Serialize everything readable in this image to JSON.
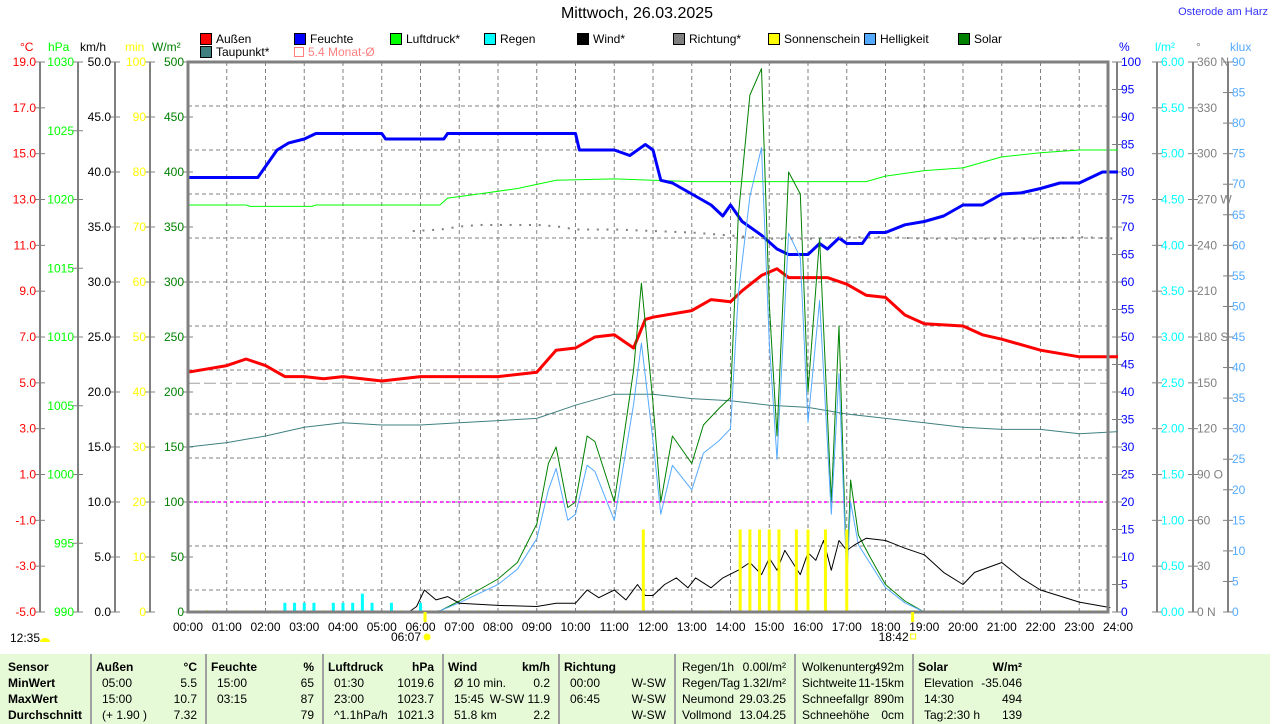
{
  "title": "Mittwoch, 26.03.2025",
  "station": "Osterode am Harz",
  "legend": [
    {
      "label": "Außen",
      "color": "#ff0000"
    },
    {
      "label": "Feuchte",
      "color": "#0000ff"
    },
    {
      "label": "Luftdruck*",
      "color": "#00ff00"
    },
    {
      "label": "Regen",
      "color": "#00ffff"
    },
    {
      "label": "Wind*",
      "color": "#000000"
    },
    {
      "label": "Richtung*",
      "color": "#808080"
    },
    {
      "label": "Sonnenschein",
      "color": "#ffff00"
    },
    {
      "label": "Helligkeit",
      "color": "#55aaff"
    },
    {
      "label": "Solar",
      "color": "#008000"
    },
    {
      "label": "Taupunkt*",
      "color": "#408080"
    },
    {
      "label": "5.4 Monat-Ø",
      "color": "#ff8080"
    }
  ],
  "markers": {
    "sunrise": "06:07",
    "sunset": "18:42",
    "noon": "12:35"
  },
  "chart_data": {
    "type": "line",
    "title": "Mittwoch, 26.03.2025",
    "x_range_hours": [
      0,
      24
    ],
    "x_ticks": [
      "00:00",
      "01:00",
      "02:00",
      "03:00",
      "04:00",
      "05:00",
      "06:00",
      "07:00",
      "08:00",
      "09:00",
      "10:00",
      "11:00",
      "12:00",
      "13:00",
      "14:00",
      "15:00",
      "16:00",
      "17:00",
      "18:00",
      "19:00",
      "20:00",
      "21:00",
      "22:00",
      "23:00",
      "24:00"
    ],
    "grid": true,
    "axes": {
      "temp": {
        "unit": "°C",
        "min": -5,
        "max": 20,
        "ticks": [
          "19.0",
          "17.0",
          "15.0",
          "13.0",
          "11.0",
          "9.0",
          "7.0",
          "5.0",
          "3.0",
          "1.0",
          "-1.0",
          "-3.0",
          "-5.0"
        ],
        "color": "#ff0000"
      },
      "hpa": {
        "unit": "hPa",
        "min": 990,
        "max": 1030,
        "ticks": [
          "1030",
          "1025",
          "1020",
          "1015",
          "1010",
          "1005",
          "1000",
          "995",
          "990"
        ],
        "color": "#00ff00"
      },
      "kmh": {
        "unit": "km/h",
        "min": 0,
        "max": 50,
        "ticks": [
          "50.0",
          "45.0",
          "40.0",
          "35.0",
          "30.0",
          "25.0",
          "20.0",
          "15.0",
          "10.0",
          "5.0",
          "0.0"
        ],
        "color": "#000000"
      },
      "min": {
        "unit": "min",
        "min": 0,
        "max": 100,
        "ticks": [
          "100",
          "90",
          "80",
          "70",
          "60",
          "50",
          "40",
          "30",
          "20",
          "10",
          "0"
        ],
        "color": "#ffff00"
      },
      "wm2": {
        "unit": "W/m²",
        "min": 0,
        "max": 500,
        "ticks": [
          "500",
          "450",
          "400",
          "350",
          "300",
          "250",
          "200",
          "150",
          "100",
          "50",
          "0"
        ],
        "color": "#008000"
      },
      "pct": {
        "unit": "%",
        "min": 0,
        "max": 100,
        "ticks": [
          "100",
          "95",
          "90",
          "85",
          "80",
          "75",
          "70",
          "65",
          "60",
          "55",
          "50",
          "45",
          "40",
          "35",
          "30",
          "25",
          "20",
          "15",
          "10",
          "5",
          "0"
        ],
        "color": "#0000ff"
      },
      "lm2": {
        "unit": "l/m²",
        "min": 0,
        "max": 6,
        "ticks": [
          "6.00",
          "5.50",
          "5.00",
          "4.50",
          "4.00",
          "3.50",
          "3.00",
          "2.50",
          "2.00",
          "1.50",
          "1.00",
          "0.50",
          "0.00"
        ],
        "color": "#00ffff"
      },
      "deg": {
        "unit": "°",
        "min": 0,
        "max": 360,
        "ticks": [
          "360 N",
          "330",
          "300",
          "270 W",
          "240",
          "210",
          "180 S",
          "150",
          "120",
          "90 O",
          "60",
          "30",
          "0 N"
        ],
        "color": "#808080"
      },
      "klux": {
        "unit": "klux",
        "min": 0,
        "max": 90,
        "ticks": [
          "90",
          "85",
          "80",
          "75",
          "70",
          "65",
          "60",
          "55",
          "50",
          "45",
          "40",
          "35",
          "30",
          "25",
          "20",
          "15",
          "10",
          "5",
          "0"
        ],
        "color": "#55aaff"
      }
    },
    "reference_lines": [
      {
        "name": "5.4 Monat-Ø",
        "axis": "temp",
        "value": 5.4,
        "color": "#a0a0a0"
      },
      {
        "name": "wind-limit",
        "axis": "kmh",
        "value": 10,
        "color": "#ff00ff"
      }
    ],
    "series": [
      {
        "name": "Luftdruck*",
        "axis": "hpa",
        "color": "#00ff00",
        "width": 1,
        "x": [
          0,
          1.5,
          1.6,
          3.2,
          3.3,
          6.5,
          6.7,
          7.5,
          8.5,
          9,
          9.5,
          11,
          12,
          13,
          17.5,
          18,
          19,
          20,
          20.5,
          21,
          22,
          23,
          24
        ],
        "y": [
          1019.6,
          1019.6,
          1019.5,
          1019.5,
          1019.6,
          1019.6,
          1020.1,
          1020.4,
          1020.8,
          1021.1,
          1021.4,
          1021.5,
          1021.4,
          1021.3,
          1021.3,
          1021.7,
          1022.1,
          1022.3,
          1022.7,
          1023.1,
          1023.4,
          1023.6,
          1023.6
        ]
      },
      {
        "name": "Taupunkt*",
        "axis": "temp",
        "color": "#408080",
        "width": 1,
        "x": [
          0,
          1,
          2,
          3,
          4,
          5,
          6,
          7,
          8,
          9,
          10,
          11,
          12,
          13,
          14,
          15,
          16,
          17,
          18,
          19,
          20,
          21,
          22,
          23,
          24
        ],
        "y": [
          2.5,
          2.7,
          3.0,
          3.4,
          3.6,
          3.5,
          3.5,
          3.6,
          3.7,
          3.8,
          4.4,
          4.9,
          4.9,
          4.7,
          4.6,
          4.4,
          4.3,
          4.0,
          3.8,
          3.6,
          3.4,
          3.3,
          3.3,
          3.1,
          3.2
        ]
      },
      {
        "name": "Außen",
        "axis": "temp",
        "color": "#ff0000",
        "width": 3,
        "x": [
          0,
          1,
          1.5,
          2,
          2.5,
          3,
          3.5,
          4,
          5,
          6,
          7,
          8,
          9,
          9.5,
          10,
          10.5,
          11,
          11.5,
          11.8,
          12,
          13,
          13.5,
          14,
          14.3,
          14.8,
          15.2,
          15.5,
          16.5,
          17,
          17.5,
          18,
          18.5,
          19,
          20,
          20.5,
          21,
          22,
          23,
          24
        ],
        "y": [
          5.9,
          6.2,
          6.5,
          6.2,
          5.7,
          5.7,
          5.6,
          5.7,
          5.5,
          5.7,
          5.7,
          5.7,
          5.9,
          6.9,
          7.0,
          7.5,
          7.6,
          7.0,
          8.3,
          8.4,
          8.7,
          9.2,
          9.1,
          9.6,
          10.3,
          10.6,
          10.2,
          10.2,
          9.9,
          9.4,
          9.3,
          8.5,
          8.1,
          8.0,
          7.6,
          7.4,
          6.9,
          6.6,
          6.6
        ]
      },
      {
        "name": "Feuchte",
        "axis": "pct",
        "color": "#0000ff",
        "width": 3,
        "x": [
          0,
          1.8,
          2.3,
          2.6,
          3,
          3.3,
          5,
          5.1,
          6.6,
          6.7,
          10,
          10.1,
          11,
          11.4,
          11.8,
          12,
          12.2,
          12.5,
          13,
          13.5,
          13.8,
          14,
          14.3,
          14.8,
          15.2,
          15.5,
          16,
          16.3,
          16.5,
          16.8,
          17,
          17.4,
          17.6,
          18,
          18.5,
          19,
          19.5,
          20,
          20.5,
          21,
          21.5,
          22,
          22.5,
          23,
          23.3,
          23.6,
          24
        ],
        "y": [
          79,
          79,
          84,
          85.3,
          86,
          87,
          87,
          86,
          86,
          87,
          87,
          84,
          84,
          83,
          85,
          84,
          78.5,
          78,
          76,
          74,
          72,
          74,
          71,
          68.5,
          66,
          65,
          65,
          67,
          66,
          68,
          67,
          67,
          69,
          69,
          70.4,
          71,
          72,
          74,
          74,
          76,
          76.2,
          77,
          78,
          78,
          79,
          80,
          80
        ]
      },
      {
        "name": "Solar",
        "axis": "wm2",
        "color": "#008000",
        "width": 1,
        "x": [
          0,
          6,
          6.5,
          7,
          7.5,
          8,
          8.5,
          9,
          9.3,
          9.5,
          9.8,
          10,
          10.3,
          10.5,
          11,
          11.5,
          11.7,
          12,
          12.2,
          12.5,
          13,
          13.3,
          13.7,
          14,
          14.2,
          14.5,
          14.8,
          15,
          15.2,
          15.5,
          15.8,
          16,
          16.3,
          16.6,
          16.8,
          17,
          17.1,
          17.3,
          17.6,
          18,
          18.5,
          19
        ],
        "y": [
          0,
          0,
          1,
          10,
          20,
          30,
          45,
          80,
          135,
          150,
          95,
          100,
          160,
          155,
          100,
          220,
          299,
          190,
          100,
          160,
          135,
          170,
          185,
          195,
          360,
          470,
          494,
          280,
          160,
          400,
          380,
          200,
          340,
          100,
          260,
          30,
          120,
          70,
          50,
          25,
          10,
          0
        ]
      },
      {
        "name": "Helligkeit",
        "axis": "klux",
        "color": "#55aaff",
        "width": 1,
        "x": [
          0,
          6,
          6.5,
          7,
          7.5,
          8,
          8.5,
          9,
          9.3,
          9.5,
          9.8,
          10,
          10.3,
          10.5,
          11,
          11.5,
          11.7,
          12,
          12.2,
          12.5,
          13,
          13.3,
          13.7,
          14,
          14.2,
          14.5,
          14.8,
          15,
          15.2,
          15.5,
          15.8,
          16,
          16.3,
          16.6,
          16.8,
          17,
          17.1,
          17.3,
          17.6,
          18,
          18.5,
          19
        ],
        "y": [
          0,
          0,
          0.2,
          1.5,
          3,
          4.5,
          7,
          12,
          20,
          23.5,
          15,
          16,
          24,
          23,
          15,
          34,
          44,
          28,
          16,
          24,
          20,
          26,
          28,
          30,
          52,
          68,
          76,
          44,
          25,
          62,
          58,
          31,
          51,
          16,
          39,
          5,
          18,
          11,
          8,
          4,
          1.5,
          0
        ]
      },
      {
        "name": "Wind*",
        "axis": "kmh",
        "color": "#000000",
        "width": 1,
        "x": [
          0,
          5.7,
          5.9,
          6.1,
          6.4,
          6.7,
          7,
          8,
          9,
          9.5,
          10,
          10.3,
          10.6,
          11,
          11.3,
          11.6,
          11.8,
          12,
          12.3,
          12.6,
          12.9,
          13.1,
          13.5,
          13.8,
          14.2,
          14.5,
          14.8,
          15,
          15.2,
          15.4,
          15.8,
          16,
          16.2,
          16.4,
          16.6,
          16.8,
          17,
          17.2,
          17.5,
          18,
          18.5,
          19,
          19.5,
          20,
          20.3,
          21,
          21.5,
          22,
          23,
          23.8
        ],
        "y": [
          0,
          0,
          0.5,
          2.0,
          1.1,
          1.4,
          0.8,
          0.6,
          0.5,
          0.8,
          0.8,
          2.0,
          1.3,
          2.0,
          1.1,
          2.5,
          1.5,
          1.5,
          2.5,
          3.1,
          2.2,
          3.1,
          2.2,
          3.1,
          3.8,
          4.5,
          3.4,
          4.9,
          3.8,
          5.6,
          3.4,
          5.4,
          4.7,
          6.5,
          3.8,
          6.5,
          5.6,
          6.1,
          6.7,
          6.5,
          5.8,
          5.2,
          3.6,
          2.5,
          3.6,
          4.5,
          3.1,
          2.0,
          0.9,
          0.4
        ]
      },
      {
        "name": "Richtung*",
        "axis": "deg",
        "color": "#808080",
        "type": "dots",
        "x": [
          5.8,
          6.5,
          7,
          7.5,
          8,
          8.5,
          9,
          9.5,
          10,
          11,
          12,
          13,
          14,
          15,
          16,
          17,
          18,
          19,
          20,
          21,
          22,
          23,
          24
        ],
        "y": [
          250,
          251,
          253,
          254,
          254,
          254,
          254,
          253,
          251,
          251,
          250,
          249,
          247,
          245,
          245,
          246,
          246,
          245,
          245,
          245,
          245,
          246,
          245
        ]
      },
      {
        "name": "Regen",
        "axis": "lm2",
        "color": "#00ffff",
        "type": "bars",
        "x": [
          2.5,
          2.75,
          3.0,
          3.25,
          3.75,
          4.0,
          4.25,
          4.5,
          4.75,
          5.25,
          6.0
        ],
        "y": [
          0.1,
          0.1,
          0.1,
          0.1,
          0.1,
          0.1,
          0.1,
          0.2,
          0.1,
          0.1,
          0.1
        ]
      },
      {
        "name": "Sonnenschein",
        "axis": "min",
        "color": "#ffff00",
        "type": "bars",
        "x": [
          11.75,
          14.25,
          14.5,
          14.75,
          15.0,
          15.25,
          15.7,
          16.0,
          16.45,
          17.0
        ],
        "y": [
          15,
          15,
          15,
          15,
          15,
          15,
          15,
          15,
          15,
          15
        ]
      }
    ]
  },
  "stats": {
    "sensor": {
      "header": "Sensor",
      "rows": [
        "MinWert",
        "MaxWert",
        "Durchschnitt"
      ]
    },
    "groups": [
      {
        "header": [
          "Außen",
          "°C"
        ],
        "rows": [
          [
            "05:00",
            "5.5"
          ],
          [
            "15:00",
            "10.7"
          ],
          [
            "(+ 1.90 )",
            "7.32"
          ]
        ]
      },
      {
        "header": [
          "Feuchte",
          "%"
        ],
        "rows": [
          [
            "15:00",
            "65"
          ],
          [
            "03:15",
            "87"
          ],
          [
            "",
            "79"
          ]
        ]
      },
      {
        "header": [
          "Luftdruck",
          "hPa"
        ],
        "rows": [
          [
            "01:30",
            "1019.6"
          ],
          [
            "23:00",
            "1023.7"
          ],
          [
            "^1.1hPa/h",
            "1021.3"
          ]
        ]
      },
      {
        "header": [
          "Wind",
          "km/h"
        ],
        "rows": [
          [
            "Ø 10 min.",
            "0.2"
          ],
          [
            "15:45",
            "W-SW 11.9"
          ],
          [
            "51.8 km",
            "2.2"
          ]
        ]
      },
      {
        "header": [
          "Richtung",
          ""
        ],
        "rows": [
          [
            "00:00",
            "W-SW"
          ],
          [
            "06:45",
            "W-SW"
          ],
          [
            "",
            "W-SW"
          ]
        ]
      },
      {
        "header": null,
        "rows": [
          [
            "Regen/1h",
            "0.00l/m²"
          ],
          [
            "Regen/Tag",
            "1.32l/m²"
          ],
          [
            "Neumond",
            "29.03.25"
          ],
          [
            "Vollmond",
            "13.04.25"
          ]
        ]
      },
      {
        "header": null,
        "rows": [
          [
            "Wolkenunterg",
            "492m"
          ],
          [
            "Sichtweite",
            "11-15km"
          ],
          [
            "Schneefallgr",
            "890m"
          ],
          [
            "Schneehöhe",
            "0cm"
          ]
        ]
      },
      {
        "header": [
          "Solar",
          "W/m²"
        ],
        "rows": [
          [
            "Elevation",
            "-35.046"
          ],
          [
            "14:30",
            "494"
          ],
          [
            "Tag:2:30 h",
            "139"
          ]
        ]
      }
    ]
  }
}
